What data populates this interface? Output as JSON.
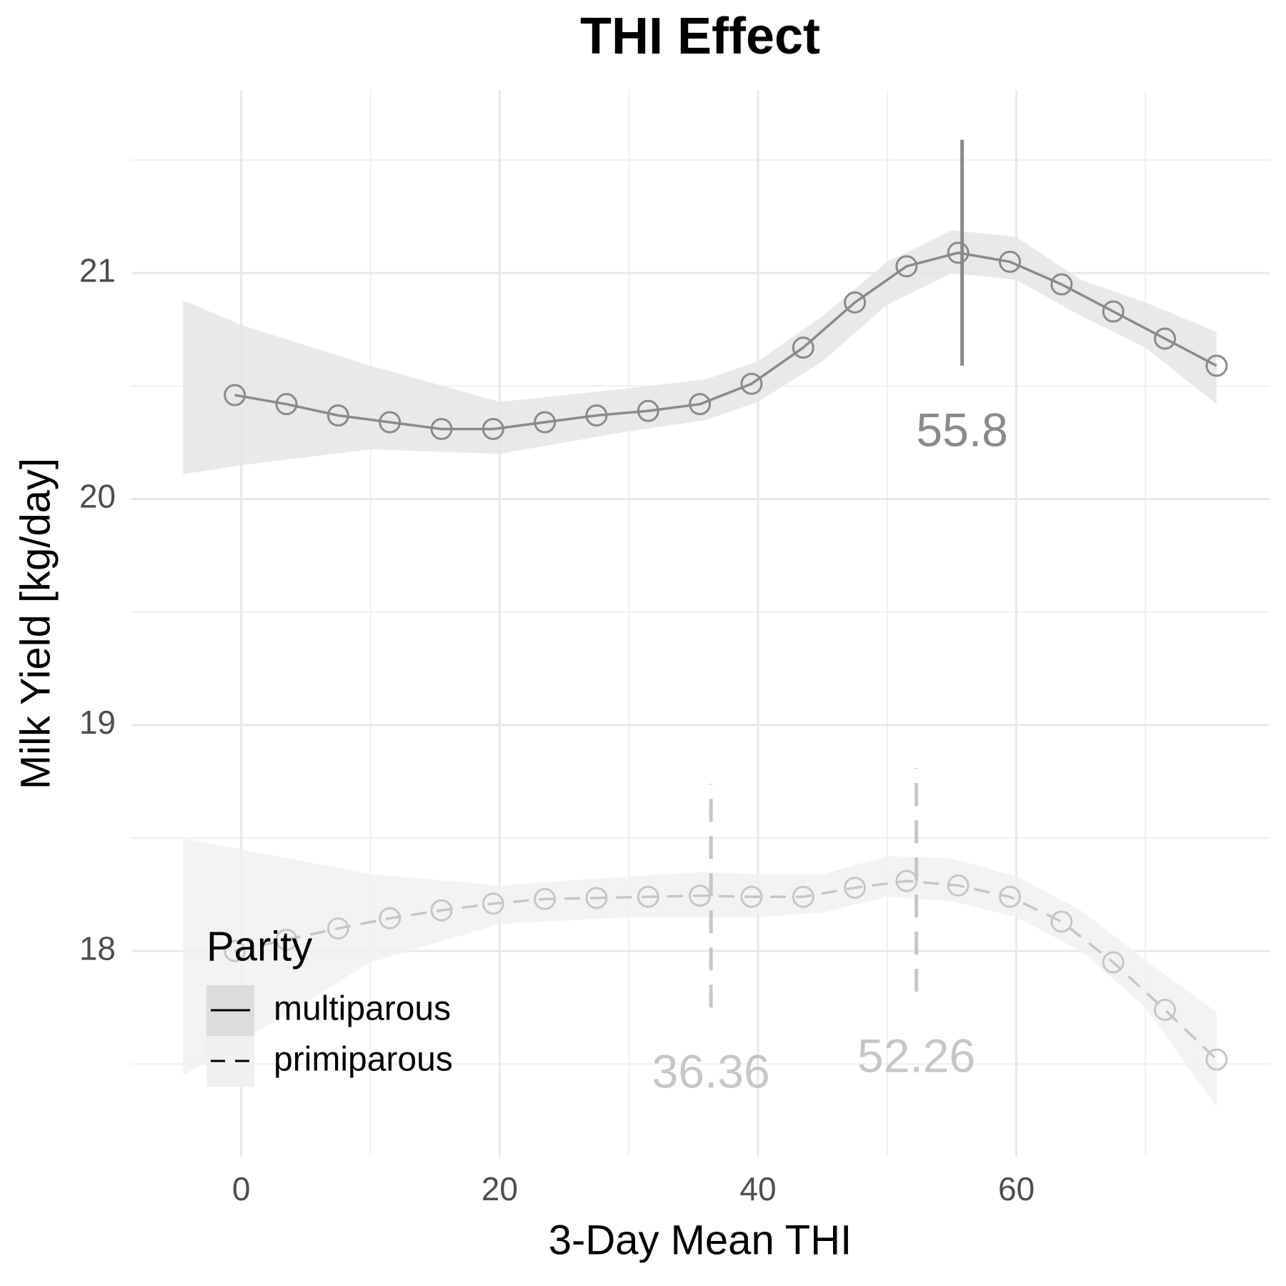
{
  "chart_data": {
    "type": "line",
    "title": "THI Effect",
    "x_label": "3-Day Mean THI",
    "y_label": "Milk Yield [kg/day]",
    "xlim": [
      -8.5,
      79.6
    ],
    "ylim": [
      17.09,
      21.81
    ],
    "xticks": [
      0,
      20,
      40,
      60
    ],
    "yticks": [
      18,
      19,
      20,
      21
    ],
    "xminor_ticks": [
      10,
      30,
      50,
      70
    ],
    "yminor_ticks": [
      17.5,
      18.5,
      19.5,
      20.5,
      21.5
    ],
    "grid": true,
    "legend": {
      "title": "Parity",
      "position": "bottom-left"
    },
    "series": [
      {
        "name": "multiparous",
        "color": "#8a8a8a",
        "band_color": "#e5e5e5",
        "legend_key_color": "#dcdcdc",
        "dash": "solid",
        "x": [
          -0.5,
          3.5,
          7.5,
          11.5,
          15.5,
          19.5,
          23.5,
          27.5,
          31.5,
          35.5,
          39.5,
          43.5,
          47.5,
          51.5,
          55.5,
          59.5,
          63.5,
          67.5,
          71.5,
          75.5
        ],
        "values": [
          20.46,
          20.42,
          20.37,
          20.34,
          20.31,
          20.31,
          20.34,
          20.37,
          20.39,
          20.42,
          20.51,
          20.67,
          20.87,
          21.03,
          21.09,
          21.05,
          20.95,
          20.83,
          20.71,
          20.59
        ],
        "band": {
          "x": [
            -4.5,
            0,
            10,
            20,
            30,
            36,
            40,
            45,
            50,
            55,
            60,
            65,
            70,
            75.5
          ],
          "lower": [
            20.11,
            20.15,
            20.22,
            20.2,
            20.3,
            20.35,
            20.43,
            20.61,
            20.86,
            21.0,
            20.97,
            20.81,
            20.67,
            20.42
          ],
          "upper": [
            20.88,
            20.77,
            20.59,
            20.43,
            20.49,
            20.53,
            20.61,
            20.81,
            21.05,
            21.19,
            21.16,
            20.97,
            20.87,
            20.74
          ]
        },
        "thresholds": [
          {
            "x": 55.8,
            "ymin": 20.59,
            "ymax": 21.59
          }
        ]
      },
      {
        "name": "primiparous",
        "color": "#c9c5c5",
        "band_color": "#f1f1f1",
        "legend_key_color": "#f0f0f0",
        "dash": "dashed",
        "x": [
          -0.5,
          3.5,
          7.5,
          11.5,
          15.5,
          19.5,
          23.5,
          27.5,
          31.5,
          35.5,
          39.5,
          43.5,
          47.5,
          51.5,
          55.5,
          59.5,
          63.5,
          67.5,
          71.5,
          75.5
        ],
        "values": [
          18.0,
          18.05,
          18.1,
          18.145,
          18.18,
          18.21,
          18.23,
          18.235,
          18.24,
          18.245,
          18.24,
          18.24,
          18.28,
          18.31,
          18.29,
          18.24,
          18.13,
          17.95,
          17.74,
          17.52
        ],
        "band": {
          "x": [
            -4.5,
            0,
            10,
            20,
            30,
            36,
            40,
            45,
            50,
            55,
            60,
            65,
            70,
            75.5
          ],
          "lower": [
            17.45,
            17.6,
            17.95,
            18.12,
            18.15,
            18.15,
            18.15,
            18.17,
            18.24,
            18.22,
            18.15,
            18.0,
            17.75,
            17.31
          ],
          "upper": [
            18.5,
            18.45,
            18.34,
            18.29,
            18.33,
            18.35,
            18.34,
            18.34,
            18.42,
            18.41,
            18.33,
            18.18,
            17.96,
            17.73
          ]
        },
        "thresholds": [
          {
            "x": 36.36,
            "ymin": 17.75,
            "ymax": 18.74
          },
          {
            "x": 52.26,
            "ymin": 17.82,
            "ymax": 18.81
          }
        ]
      }
    ]
  }
}
